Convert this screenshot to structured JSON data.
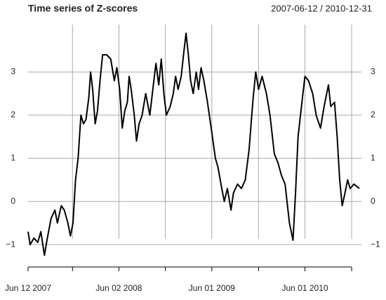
{
  "chart_data": {
    "type": "line",
    "title": "Time series of Z-scores",
    "subtitle": "2007-06-12 / 2010-12-31",
    "x": [
      "2007-06-12",
      "2007-06-20",
      "2007-07-05",
      "2007-07-20",
      "2007-08-01",
      "2007-08-15",
      "2007-08-25",
      "2007-09-10",
      "2007-09-25",
      "2007-10-05",
      "2007-10-20",
      "2007-11-01",
      "2007-11-15",
      "2007-11-25",
      "2007-12-05",
      "2007-12-15",
      "2007-12-25",
      "2008-01-05",
      "2008-01-15",
      "2008-01-25",
      "2008-02-05",
      "2008-02-12",
      "2008-02-20",
      "2008-03-01",
      "2008-03-10",
      "2008-03-20",
      "2008-03-30",
      "2008-04-15",
      "2008-05-01",
      "2008-05-15",
      "2008-05-25",
      "2008-06-05",
      "2008-06-15",
      "2008-06-25",
      "2008-07-05",
      "2008-07-12",
      "2008-07-20",
      "2008-08-01",
      "2008-08-10",
      "2008-08-20",
      "2008-09-01",
      "2008-09-15",
      "2008-10-01",
      "2008-10-15",
      "2008-10-25",
      "2008-11-05",
      "2008-11-15",
      "2008-11-25",
      "2008-12-05",
      "2008-12-20",
      "2009-01-01",
      "2009-01-10",
      "2009-01-20",
      "2009-02-01",
      "2009-02-10",
      "2009-02-20",
      "2009-03-01",
      "2009-03-10",
      "2009-03-20",
      "2009-04-01",
      "2009-04-10",
      "2009-04-20",
      "2009-05-01",
      "2009-05-15",
      "2009-06-01",
      "2009-06-15",
      "2009-06-25",
      "2009-07-10",
      "2009-07-20",
      "2009-08-01",
      "2009-08-15",
      "2009-08-25",
      "2009-09-10",
      "2009-09-25",
      "2009-10-10",
      "2009-10-25",
      "2009-11-10",
      "2009-11-20",
      "2009-12-01",
      "2009-12-15",
      "2010-01-01",
      "2010-01-15",
      "2010-02-01",
      "2010-02-15",
      "2010-03-01",
      "2010-03-15",
      "2010-04-01",
      "2010-04-15",
      "2010-04-25",
      "2010-05-05",
      "2010-05-20",
      "2010-06-01",
      "2010-06-15",
      "2010-07-01",
      "2010-07-15",
      "2010-08-01",
      "2010-08-15",
      "2010-09-01",
      "2010-09-10",
      "2010-09-25",
      "2010-10-05",
      "2010-10-15",
      "2010-10-25",
      "2010-11-05",
      "2010-11-15",
      "2010-11-25",
      "2010-12-10",
      "2010-12-31"
    ],
    "series": [
      {
        "name": "Z-score",
        "color": "#000000",
        "values": [
          -0.7,
          -1.0,
          -0.85,
          -0.95,
          -0.7,
          -1.25,
          -0.9,
          -0.4,
          -0.2,
          -0.5,
          -0.1,
          -0.2,
          -0.5,
          -0.8,
          -0.5,
          0.5,
          1.0,
          2.0,
          1.8,
          1.9,
          2.4,
          3.0,
          2.6,
          1.8,
          2.1,
          2.8,
          3.4,
          3.4,
          3.3,
          2.8,
          3.1,
          2.6,
          1.7,
          2.1,
          2.3,
          2.9,
          2.6,
          2.0,
          1.4,
          1.8,
          2.0,
          2.5,
          2.0,
          2.7,
          3.2,
          2.7,
          3.3,
          2.5,
          2.0,
          2.2,
          2.5,
          2.9,
          2.6,
          2.9,
          3.4,
          3.9,
          3.4,
          2.8,
          2.5,
          3.0,
          2.6,
          3.1,
          2.8,
          2.3,
          1.6,
          1.0,
          0.8,
          0.3,
          0.0,
          0.3,
          -0.2,
          0.2,
          0.4,
          0.3,
          0.5,
          1.2,
          2.4,
          3.0,
          2.6,
          2.9,
          2.5,
          2.0,
          1.1,
          0.9,
          0.6,
          0.4,
          -0.5,
          -0.9,
          0.2,
          1.5,
          2.3,
          2.9,
          2.8,
          2.5,
          2.0,
          1.7,
          2.2,
          2.7,
          2.2,
          2.3,
          1.5,
          0.5,
          -0.1,
          0.2,
          0.5,
          0.3,
          0.4,
          0.3
        ]
      }
    ],
    "xlim": [
      "2007-06-12",
      "2010-12-31"
    ],
    "xticks": [
      {
        "value": "2007-06-12",
        "label": "Jun 12 2007"
      },
      {
        "value": "2007-12-03",
        "label": null
      },
      {
        "value": "2008-06-02",
        "label": "Jun 02 2008"
      },
      {
        "value": "2008-12-01",
        "label": null
      },
      {
        "value": "2009-06-01",
        "label": "Jun 01 2009"
      },
      {
        "value": "2009-12-01",
        "label": null
      },
      {
        "value": "2010-06-01",
        "label": "Jun 01 2010"
      },
      {
        "value": "2010-12-01",
        "label": null
      }
    ],
    "ylim": [
      -1.52,
      4.1
    ],
    "yticks": [
      {
        "value": -1,
        "label": "−1"
      },
      0,
      1,
      2,
      3
    ],
    "grid": true
  }
}
